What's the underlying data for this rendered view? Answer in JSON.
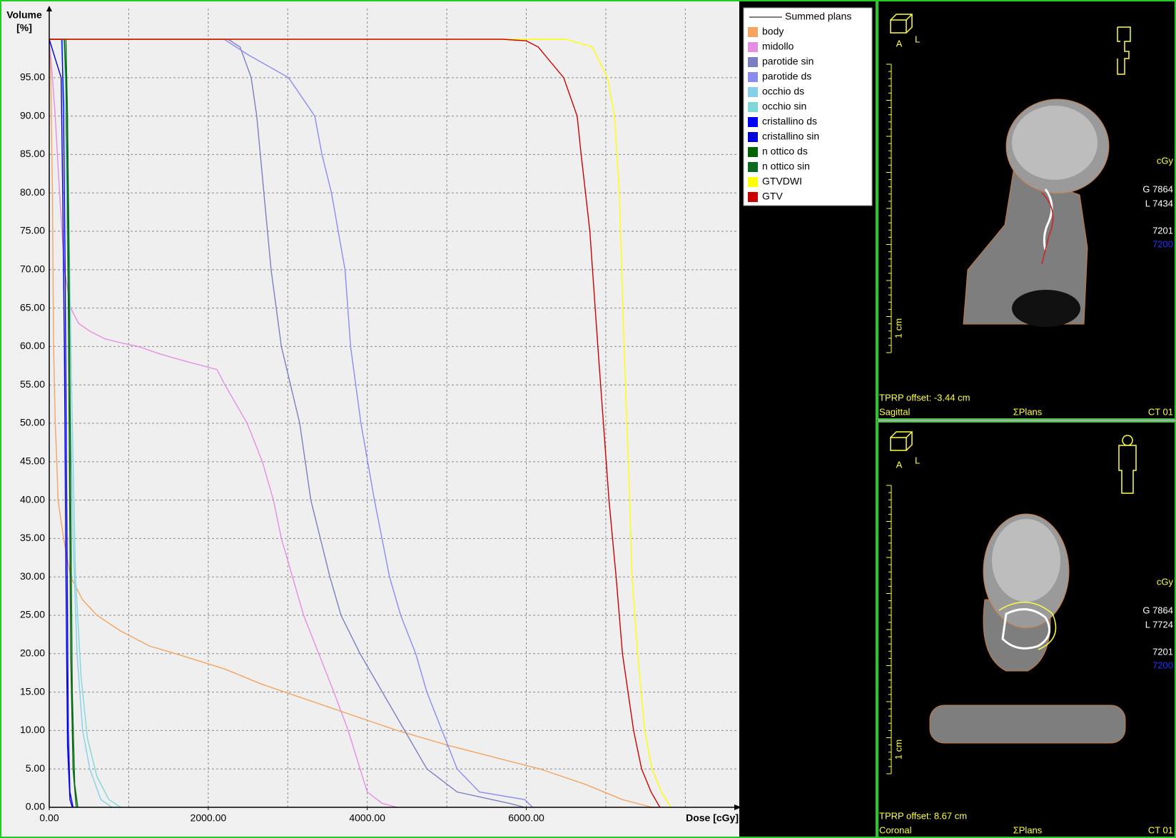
{
  "chart_data": {
    "type": "line",
    "ylabel": [
      "Volume",
      "[%]"
    ],
    "xlabel": "Dose [cGy]",
    "legend_title": "Summed plans",
    "xlim": [
      0,
      8670
    ],
    "ylim": [
      0,
      104
    ],
    "xticks": [
      {
        "value": 0,
        "label": "0.00"
      },
      {
        "value": 2000,
        "label": "2000.00"
      },
      {
        "value": 4000,
        "label": "4000.00"
      },
      {
        "value": 6000,
        "label": "6000.00"
      }
    ],
    "xgrid": [
      1000,
      2000,
      3000,
      4000,
      5000,
      6000,
      7000,
      8000
    ],
    "yticks": [
      {
        "value": 0,
        "label": "0.00"
      },
      {
        "value": 5,
        "label": "5.00"
      },
      {
        "value": 10,
        "label": "10.00"
      },
      {
        "value": 15,
        "label": "15.00"
      },
      {
        "value": 20,
        "label": "20.00"
      },
      {
        "value": 25,
        "label": "25.00"
      },
      {
        "value": 30,
        "label": "30.00"
      },
      {
        "value": 35,
        "label": "35.00"
      },
      {
        "value": 40,
        "label": "40.00"
      },
      {
        "value": 45,
        "label": "45.00"
      },
      {
        "value": 50,
        "label": "50.00"
      },
      {
        "value": 55,
        "label": "55.00"
      },
      {
        "value": 60,
        "label": "60.00"
      },
      {
        "value": 65,
        "label": "65.00"
      },
      {
        "value": 70,
        "label": "70.00"
      },
      {
        "value": 75,
        "label": "75.00"
      },
      {
        "value": 80,
        "label": "80.00"
      },
      {
        "value": 85,
        "label": "85.00"
      },
      {
        "value": 90,
        "label": "90.00"
      },
      {
        "value": 95,
        "label": "95.00"
      }
    ],
    "grid": true,
    "series": [
      {
        "name": "body",
        "color": "#f4a460",
        "x": [
          0,
          20,
          40,
          55,
          75,
          95,
          110,
          180,
          270,
          420,
          600,
          890,
          1260,
          1590,
          2210,
          2680,
          3250,
          3810,
          4380,
          5040,
          5790,
          6170,
          6740,
          7210,
          7580
        ],
        "values": [
          100,
          95,
          80,
          60,
          50,
          45,
          40,
          35,
          30,
          27,
          25,
          23,
          21,
          20,
          18,
          16,
          14,
          12,
          10,
          8,
          6,
          5,
          3,
          1,
          0
        ]
      },
      {
        "name": "midollo",
        "color": "#e38ee0",
        "x": [
          0,
          40,
          75,
          130,
          190,
          270,
          370,
          510,
          700,
          890,
          1120,
          1400,
          1740,
          2110,
          2210,
          2490,
          2680,
          2820,
          2920,
          3060,
          3200,
          3390,
          3580,
          3760,
          3910,
          4000,
          4190,
          4380
        ],
        "values": [
          100,
          95,
          90,
          80,
          70,
          65,
          63,
          62,
          61,
          60.5,
          60,
          59,
          58,
          57,
          55,
          50,
          45,
          40,
          35,
          30,
          25,
          20,
          15,
          10,
          5,
          2,
          0.5,
          0
        ]
      },
      {
        "name": "parotide sin",
        "color": "#7b7fc0",
        "x": [
          0,
          2250,
          2400,
          2540,
          2610,
          2700,
          2790,
          2920,
          3150,
          3290,
          3530,
          3670,
          3910,
          4190,
          4470,
          4750,
          5130,
          5790,
          5980
        ],
        "values": [
          100,
          100,
          99,
          95,
          90,
          80,
          70,
          60,
          50,
          40,
          30,
          25,
          20,
          15,
          10,
          5,
          2,
          0.5,
          0
        ]
      },
      {
        "name": "parotide ds",
        "color": "#8b8bf0",
        "x": [
          0,
          2200,
          2500,
          3010,
          3340,
          3430,
          3550,
          3720,
          3790,
          3920,
          4090,
          4280,
          4420,
          4610,
          4750,
          4940,
          5130,
          5410,
          5980,
          6080
        ],
        "values": [
          100,
          100,
          98,
          95,
          90,
          85,
          80,
          70,
          60,
          50,
          40,
          30,
          25,
          20,
          15,
          10,
          5,
          2,
          1,
          0
        ]
      },
      {
        "name": "occhio ds",
        "color": "#87cee8",
        "x": [
          0,
          150,
          200,
          250,
          300,
          350,
          420,
          510,
          650,
          790
        ],
        "values": [
          100,
          100,
          90,
          60,
          35,
          20,
          10,
          5,
          1,
          0
        ]
      },
      {
        "name": "occhio sin",
        "color": "#7fd8d8",
        "x": [
          0,
          180,
          230,
          280,
          330,
          400,
          480,
          600,
          750,
          900
        ],
        "values": [
          100,
          100,
          88,
          55,
          30,
          17,
          9,
          4,
          1,
          0
        ]
      },
      {
        "name": "cristallino ds",
        "color": "#0000ff",
        "x": [
          0,
          160,
          180,
          200,
          220,
          240,
          260,
          300
        ],
        "values": [
          100,
          100,
          90,
          70,
          40,
          10,
          2,
          0
        ]
      },
      {
        "name": "cristallino sin",
        "color": "#0000d8",
        "x": [
          0,
          150,
          170,
          190,
          210,
          230,
          260,
          290
        ],
        "values": [
          100,
          95,
          80,
          60,
          30,
          8,
          1,
          0
        ]
      },
      {
        "name": "n ottico ds",
        "color": "#006400",
        "x": [
          0,
          190,
          210,
          230,
          250,
          270,
          300,
          340
        ],
        "values": [
          100,
          100,
          95,
          80,
          50,
          20,
          5,
          0
        ]
      },
      {
        "name": "n ottico sin",
        "color": "#0a6a20",
        "x": [
          0,
          210,
          230,
          250,
          270,
          290,
          320,
          360
        ],
        "values": [
          100,
          100,
          90,
          70,
          40,
          15,
          3,
          0
        ]
      },
      {
        "name": "GTVDWI",
        "color": "#ffff00",
        "x": [
          0,
          6500,
          6830,
          7020,
          7110,
          7170,
          7230,
          7300,
          7330,
          7400,
          7490,
          7580,
          7700,
          7820
        ],
        "values": [
          100,
          100,
          99,
          95,
          90,
          80,
          60,
          40,
          30,
          20,
          10,
          5,
          2,
          0
        ]
      },
      {
        "name": "GTV",
        "color": "#cc0000",
        "x": [
          0,
          5700,
          6000,
          6150,
          6470,
          6640,
          6690,
          6800,
          6900,
          7040,
          7130,
          7210,
          7350,
          7450,
          7570,
          7680
        ],
        "values": [
          100,
          100,
          99.8,
          99,
          95,
          90,
          85,
          75,
          60,
          40,
          30,
          20,
          10,
          5,
          2,
          0
        ]
      }
    ]
  },
  "views": [
    {
      "orient_a": "A",
      "orient_l": "L",
      "scale": "1 cm",
      "unit": "cGy",
      "window": "G 7864",
      "level": "L 7434",
      "dose_max": "7201",
      "dose_ref": "7200",
      "offset": "TPRP offset: -3.44 cm",
      "plane": "Sagittal",
      "plans": "ΣPlans",
      "series_label": "CT 01"
    },
    {
      "orient_a": "A",
      "orient_l": "L",
      "scale": "1 cm",
      "unit": "cGy",
      "window": "G 7864",
      "level": "L 7724",
      "dose_max": "7201",
      "dose_ref": "7200",
      "offset": "TPRP offset: 8.67 cm",
      "plane": "Coronal",
      "plans": "ΣPlans",
      "series_label": "CT 01"
    }
  ]
}
